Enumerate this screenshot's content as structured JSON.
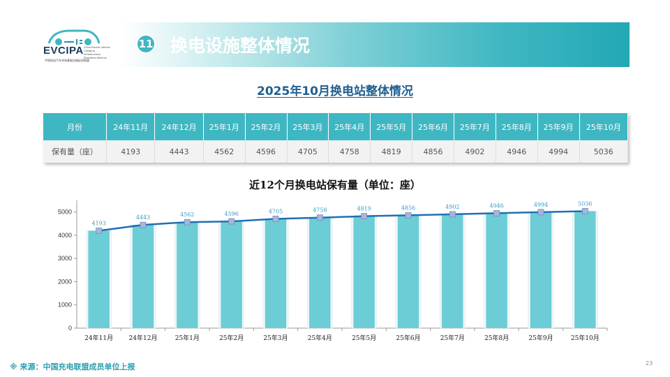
{
  "logo": {
    "name": "EVCIPA",
    "subtitle": "中国电动汽车充电基础设施促进联盟",
    "side_text": "China Electric Vehicle Charging Infrastructure Promotion Alliance"
  },
  "header": {
    "number": "11",
    "title": "换电设施整体情况"
  },
  "subtitle": "2025年10月换电站整体情况",
  "table": {
    "row_label_header": "月份",
    "row_label_values": "保有量（座）",
    "months": [
      "24年11月",
      "24年12月",
      "25年1月",
      "25年2月",
      "25年3月",
      "25年4月",
      "25年5月",
      "25年6月",
      "25年7月",
      "25年8月",
      "25年9月",
      "25年10月"
    ],
    "values": [
      "4193",
      "4443",
      "4562",
      "4596",
      "4705",
      "4758",
      "4819",
      "4856",
      "4902",
      "4946",
      "4994",
      "5036"
    ]
  },
  "chart_title": "近12个月换电站保有量（单位：座）",
  "chart_data": {
    "type": "bar",
    "categories": [
      "24年11月",
      "24年12月",
      "25年1月",
      "25年2月",
      "25年3月",
      "25年4月",
      "25年5月",
      "25年6月",
      "25年7月",
      "25年8月",
      "25年9月",
      "25年10月"
    ],
    "values": [
      4193,
      4443,
      4562,
      4596,
      4705,
      4758,
      4819,
      4856,
      4902,
      4946,
      4994,
      5036
    ],
    "overlay_line": true,
    "ylim": [
      0,
      5500
    ],
    "yticks": [
      0,
      1000,
      2000,
      3000,
      4000,
      5000
    ],
    "data_labels": true,
    "colors": {
      "bar": "#6ccdd6",
      "line": "#1f6fb5",
      "marker": "#a8b6d8"
    }
  },
  "footer": {
    "source": "※ 来源：中国充电联盟成员单位上报",
    "page": "23"
  }
}
